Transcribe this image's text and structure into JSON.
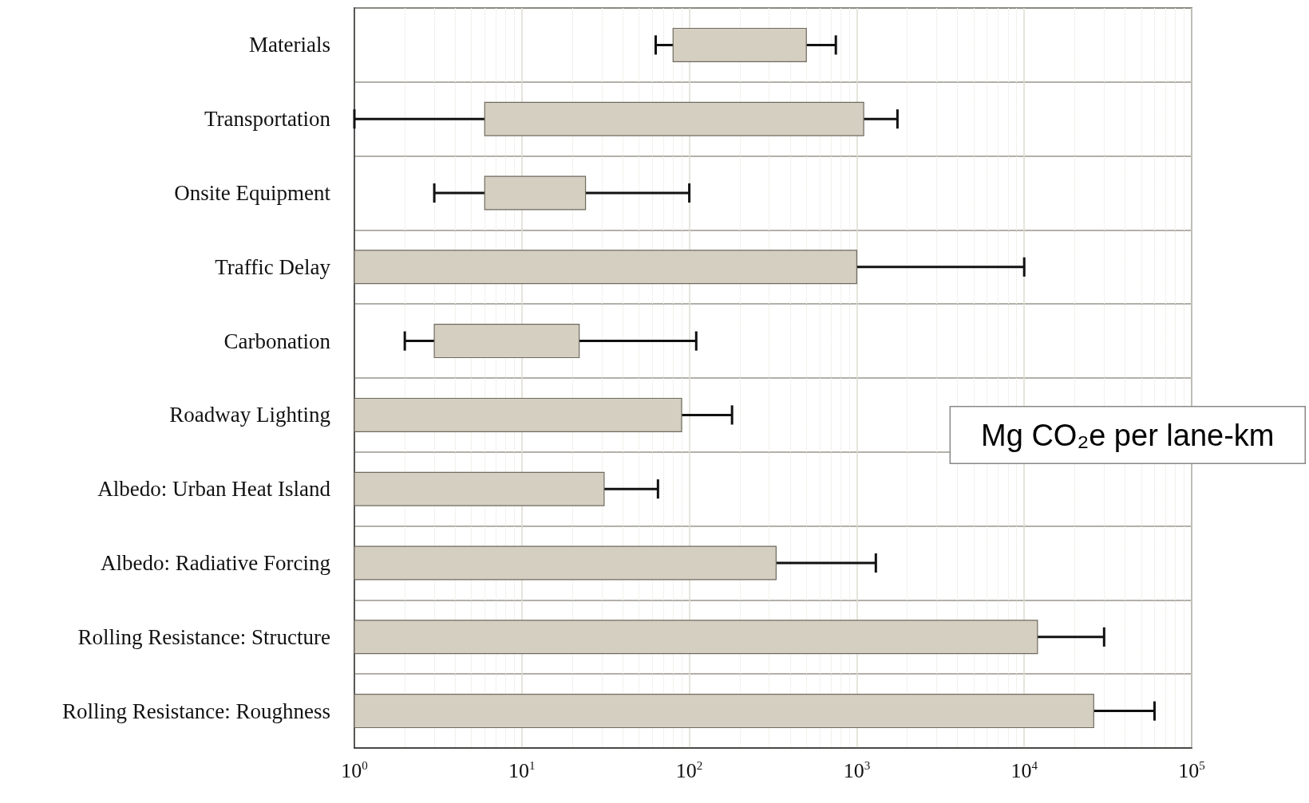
{
  "chart_data": {
    "type": "bar",
    "orientation": "horizontal",
    "xlabel": "Mg CO₂e per lane-km",
    "categories": [
      "Materials",
      "Transportation",
      "Onsite Equipment",
      "Traffic Delay",
      "Carbonation",
      "Roadway Lighting",
      "Albedo: Urban Heat Island",
      "Albedo: Radiative Forcing",
      "Rolling Resistance: Structure",
      "Rolling Resistance: Roughness"
    ],
    "base": [
      80,
      6,
      6,
      1,
      3,
      1,
      1,
      1,
      1,
      1
    ],
    "values": [
      420,
      1094,
      18,
      999,
      19,
      89,
      30,
      329,
      11999,
      25999
    ],
    "errors": [
      [
        63,
        750
      ],
      [
        1,
        1750
      ],
      [
        3,
        100
      ],
      [
        1000,
        10000
      ],
      [
        2,
        110
      ],
      [
        90,
        180
      ],
      [
        31,
        65
      ],
      [
        330,
        1300
      ],
      [
        12000,
        30000
      ],
      [
        26000,
        60000
      ]
    ],
    "color": "#d4cfc0",
    "log": "x",
    "xlim": [
      1,
      100000
    ],
    "xticks": [
      {
        "value": 1,
        "label": "10$^{0}$"
      },
      {
        "value": 10,
        "label": "10$^{1}$"
      },
      {
        "value": 100,
        "label": "10$^{2}$"
      },
      {
        "value": 1000,
        "label": "10$^{3}$"
      },
      {
        "value": 10000,
        "label": "10$^{4}$"
      },
      {
        "value": 100000,
        "label": "10$^{5}$"
      }
    ],
    "grid": true
  }
}
